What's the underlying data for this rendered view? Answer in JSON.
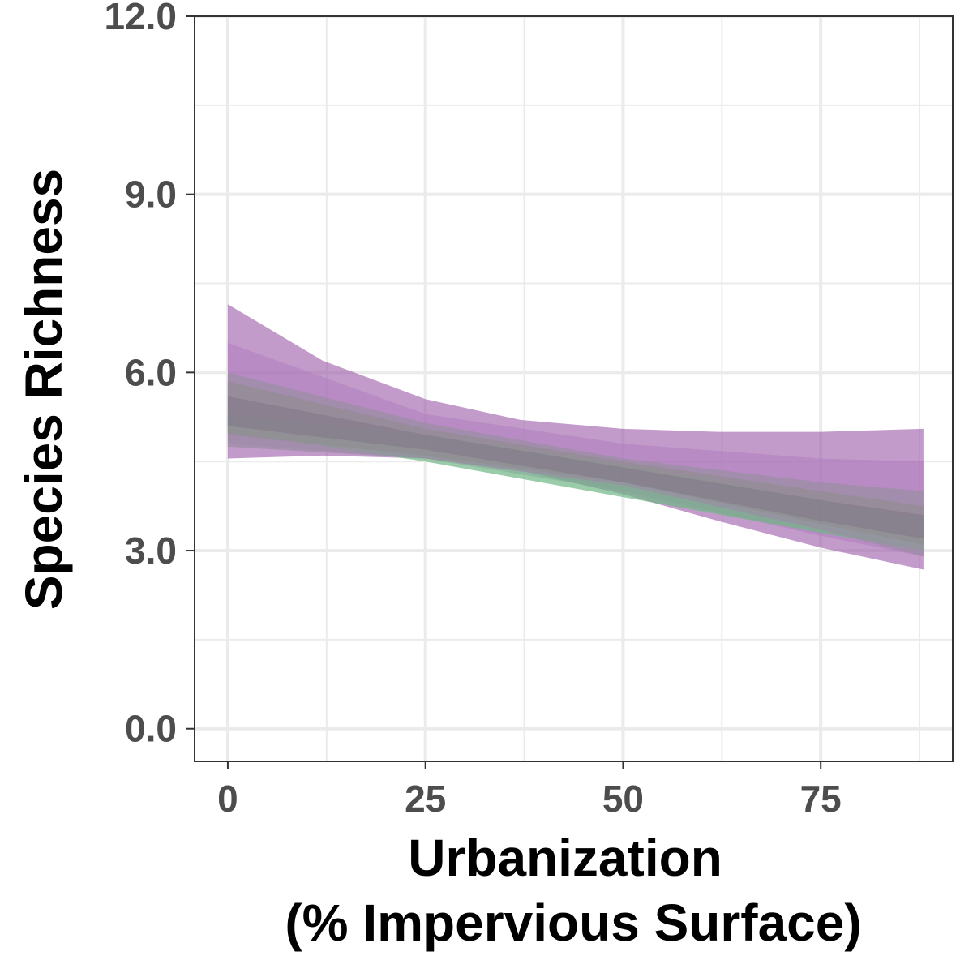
{
  "chart_data": {
    "type": "area",
    "title": "",
    "xlabel": "Urbanization",
    "xlabel_line2": "(% Impervious Surface)",
    "ylabel": "Species Richness",
    "xlim": [
      -4.2,
      91.7
    ],
    "ylim": [
      -0.55,
      12.0
    ],
    "x_ticks": [
      0,
      25,
      50,
      75
    ],
    "x_tick_labels": [
      "0",
      "25",
      "50",
      "75"
    ],
    "y_ticks": [
      0,
      3,
      6,
      9,
      12
    ],
    "y_tick_labels": [
      "0.0",
      "3.0",
      "6.0",
      "9.0",
      "12.0"
    ],
    "x_minor_gridlines": [
      12.5,
      37.5,
      62.5,
      87.5
    ],
    "y_minor_gridlines": [
      1.5,
      4.5,
      7.5,
      10.5
    ],
    "grid": true,
    "legend": "none",
    "colors": {
      "purple": "#9b59a8",
      "green": "#6fb784",
      "grey": "#8c8c8c",
      "grid": "#ebebeb",
      "panel_border": "#333333"
    },
    "series": [
      {
        "color": "#9b59a8",
        "opacity": 0.6,
        "x": [
          0,
          12,
          25,
          37,
          50,
          62,
          75,
          88
        ],
        "upper": [
          7.15,
          6.2,
          5.55,
          5.2,
          5.05,
          5.0,
          5.0,
          5.05
        ],
        "lower": [
          4.55,
          4.6,
          4.55,
          4.35,
          3.95,
          3.5,
          3.05,
          2.68
        ]
      },
      {
        "color": "#b07cbe",
        "opacity": 0.5,
        "x": [
          0,
          25,
          50,
          75,
          88
        ],
        "upper": [
          6.5,
          5.3,
          4.8,
          4.55,
          4.5
        ],
        "lower": [
          4.8,
          4.55,
          4.0,
          3.25,
          2.9
        ]
      },
      {
        "color": "#6fb784",
        "opacity": 0.7,
        "x": [
          0,
          25,
          50,
          75,
          88
        ],
        "upper": [
          5.3,
          4.95,
          4.45,
          3.85,
          3.55
        ],
        "lower": [
          5.0,
          4.5,
          3.9,
          3.3,
          3.0
        ]
      },
      {
        "color": "#9a8fa3",
        "opacity": 0.7,
        "x": [
          0,
          25,
          50,
          75,
          88
        ],
        "upper": [
          6.0,
          5.15,
          4.55,
          4.15,
          4.0
        ],
        "lower": [
          4.75,
          4.55,
          4.1,
          3.35,
          2.9
        ]
      },
      {
        "color": "#8c8c8c",
        "opacity": 0.55,
        "x": [
          0,
          25,
          50,
          75,
          88
        ],
        "upper": [
          5.85,
          5.05,
          4.5,
          4.0,
          3.75
        ],
        "lower": [
          4.95,
          4.6,
          4.15,
          3.45,
          3.1
        ]
      },
      {
        "color": "#7d7386",
        "opacity": 0.5,
        "x": [
          0,
          25,
          50,
          75,
          88
        ],
        "upper": [
          5.6,
          4.95,
          4.4,
          3.85,
          3.6
        ],
        "lower": [
          5.1,
          4.7,
          4.15,
          3.5,
          3.2
        ]
      }
    ]
  }
}
